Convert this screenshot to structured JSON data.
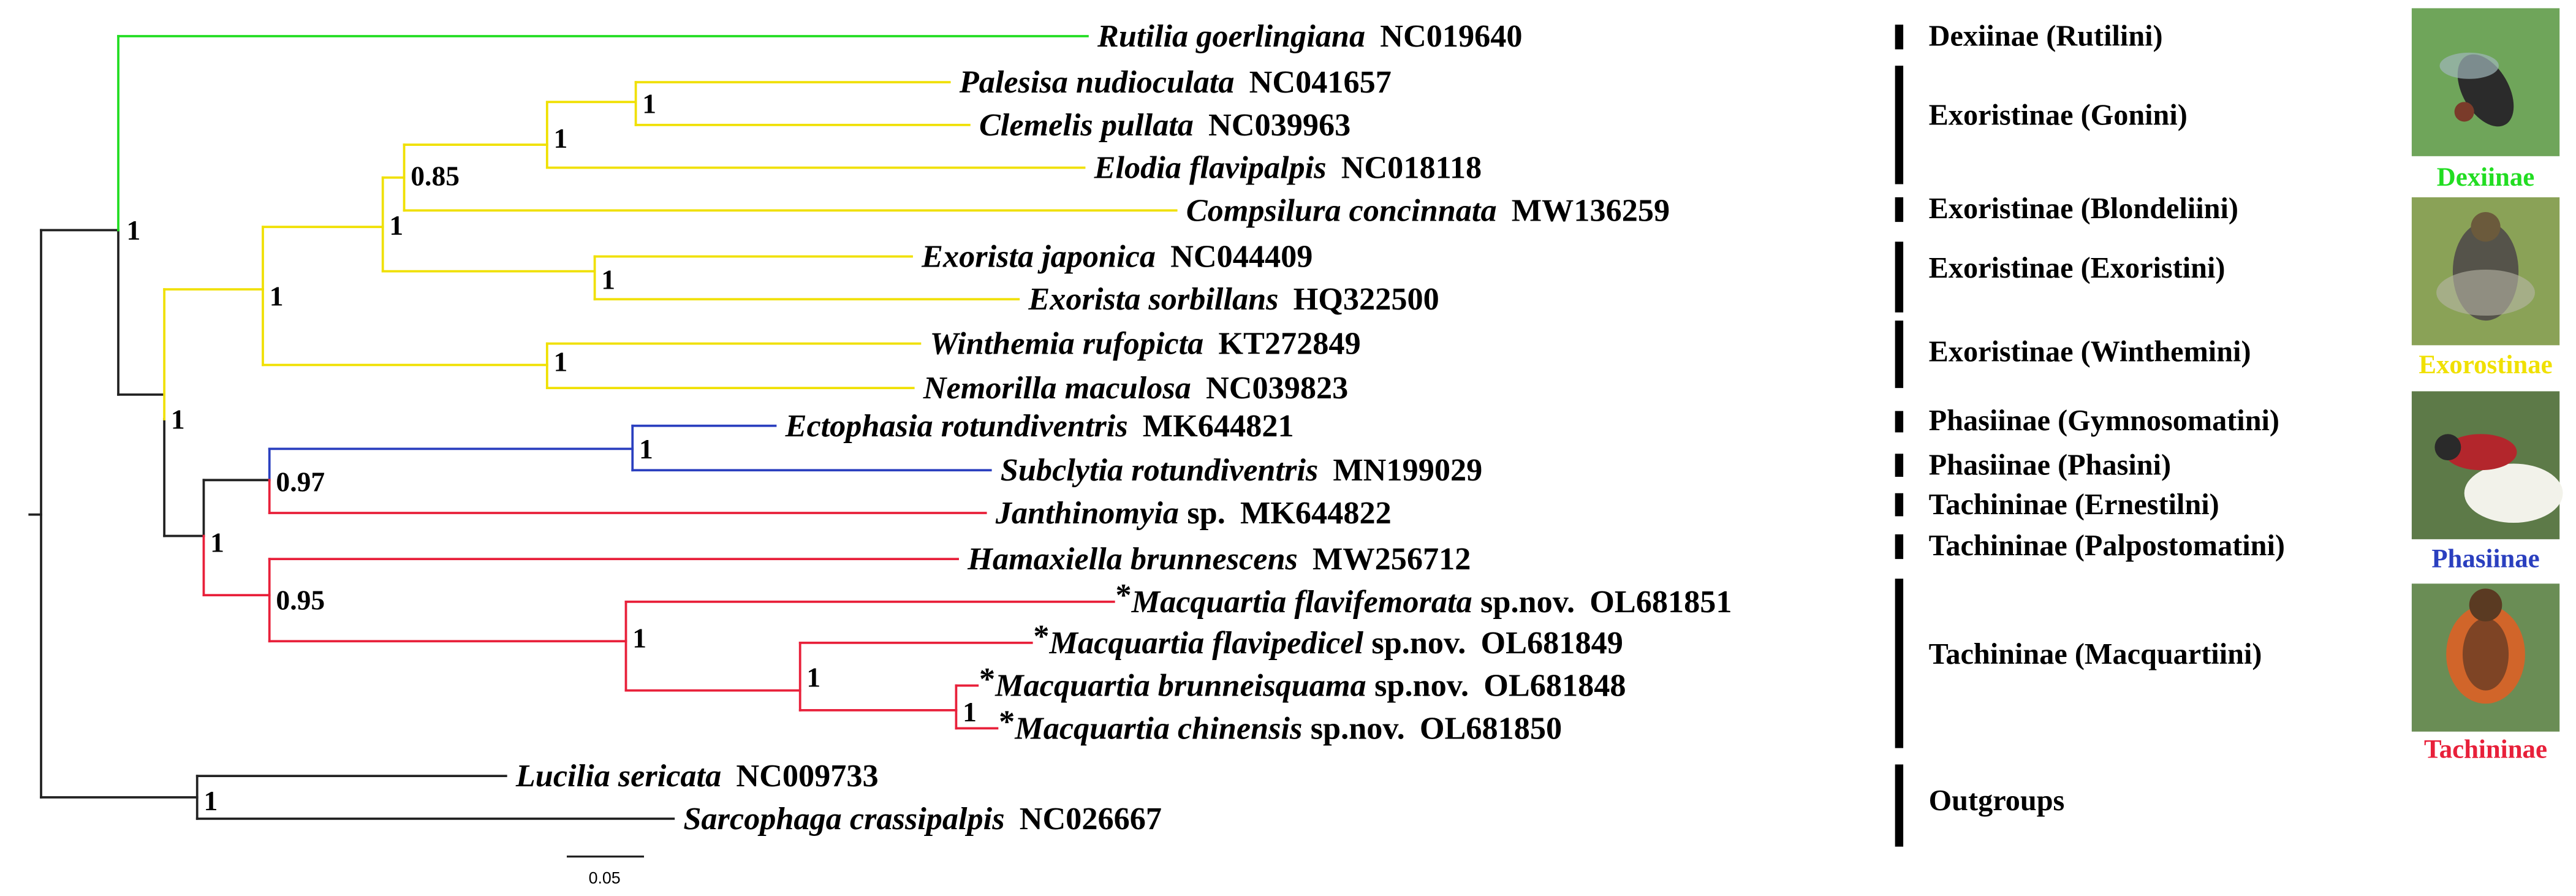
{
  "taxa": [
    {
      "name": "Rutilia goerlingiana",
      "accession": "NC019640"
    },
    {
      "name": "Palesisa nudioculata",
      "accession": "NC041657"
    },
    {
      "name": "Clemelis pullata",
      "accession": "NC039963"
    },
    {
      "name": "Elodia flavipalpis",
      "accession": "NC018118"
    },
    {
      "name": "Compsilura concinnata",
      "accession": "MW136259"
    },
    {
      "name": "Exorista japonica",
      "accession": "NC044409"
    },
    {
      "name": "Exorista sorbillans",
      "accession": "HQ322500"
    },
    {
      "name": "Winthemia rufopicta",
      "accession": "KT272849"
    },
    {
      "name": "Nemorilla maculosa",
      "accession": "NC039823"
    },
    {
      "name": "Ectophasia rotundiventris",
      "accession": "MK644821"
    },
    {
      "name": "Subclytia rotundiventris",
      "accession": "MN199029"
    },
    {
      "name": "Janthinomyia",
      "qualifier": "sp.",
      "accession": "MK644822"
    },
    {
      "name": "Hamaxiella brunnescens",
      "accession": "MW256712"
    },
    {
      "marker": "*",
      "name": "Macquartia flavifemorata",
      "qualifier": "sp.nov.",
      "accession": "OL681851"
    },
    {
      "marker": "*",
      "name": "Macquartia flavipedicel",
      "qualifier": "sp.nov.",
      "accession": "OL681849"
    },
    {
      "marker": "*",
      "name": "Macquartia brunneisquama",
      "qualifier": "sp.nov.",
      "accession": "OL681848"
    },
    {
      "marker": "*",
      "name": "Macquartia chinensis",
      "qualifier": "sp.nov.",
      "accession": "OL681850"
    },
    {
      "name": "Lucilia sericata",
      "accession": "NC009733"
    },
    {
      "name": "Sarcophaga crassipalpis",
      "accession": "NC026667"
    }
  ],
  "support_values": [
    1,
    1,
    1,
    1,
    0.85,
    1,
    1,
    1,
    1,
    1,
    0.97,
    1,
    0.95,
    1,
    1,
    1,
    1
  ],
  "groups": [
    "Dexiinae (Rutilini)",
    "Exoristinae (Gonini)",
    "Exoristinae (Blondeliini)",
    "Exoristinae (Exoristini)",
    "Exoristinae (Winthemini)",
    "Phasiinae (Gymnosomatini)",
    "Phasiinae (Phasini)",
    "Tachininae (Ernestilni)",
    "Tachininae (Palpostomatini)",
    "Tachininae (Macquartiini)",
    "Outgroups"
  ],
  "photo_captions": [
    "Dexiinae",
    "Exorostinae",
    "Phasiinae",
    "Tachininae"
  ],
  "scale_bar": 0.05
}
